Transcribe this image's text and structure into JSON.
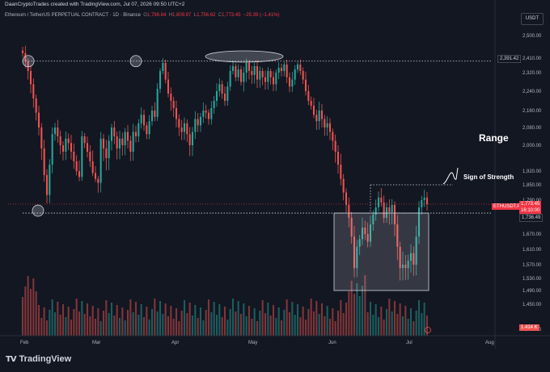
{
  "header": {
    "text": "DaanCryptoTrades created with TradingView.com, Jul 07, 2026 09:50 UTC+2"
  },
  "symbol_line": {
    "name": "Ethereum / TetherUS PERPETUAL CONTRACT · 1D · Binance",
    "open_label": "O",
    "open": "1,798.84",
    "high_label": "H",
    "high": "1,809.87",
    "low_label": "L",
    "low": "1,756.62",
    "close_label": "C",
    "close": "1,773.45",
    "change": "−25.39 (−1.41%)"
  },
  "currency_button": "USDT",
  "annotations": {
    "range": "Range",
    "sign_of_strength": "Sign of Strength"
  },
  "price_labels": {
    "top_level": "2,391.42",
    "symbol_tag": "ETHUSDT.P",
    "current": "1,773.45",
    "countdown": "16:10:00",
    "low_level": "1,736.49",
    "volume_tag": "1.414 K"
  },
  "footer": {
    "logo_mark": "TV",
    "logo_text": "TradingView"
  },
  "colors": {
    "background": "#131722",
    "up": "#26a69a",
    "down": "#ef5350",
    "current_price": "#f23645"
  },
  "chart_data": {
    "type": "candlestick",
    "y_ticks": [
      "2,500.00",
      "2,410.00",
      "2,320.00",
      "2,240.00",
      "2,160.00",
      "2,080.00",
      "2,000.00",
      "1,920.00",
      "1,850.00",
      "1,790.00",
      "1,730.00",
      "1,670.00",
      "1,610.00",
      "1,570.00",
      "1,530.00",
      "1,490.00",
      "1,450.00",
      "1,414.00"
    ],
    "x_ticks": [
      "Feb",
      "Mar",
      "Apr",
      "May",
      "Jun",
      "Jul",
      "Aug"
    ],
    "levels": [
      2391.42,
      1736.49
    ],
    "range_box": [
      1490,
      1736.49
    ],
    "sos_level": 1850,
    "closes": [
      2430,
      2390,
      2330,
      2270,
      2210,
      2150,
      2080,
      1990,
      1900,
      1810,
      1940,
      2050,
      2080,
      2040,
      2000,
      1980,
      2030,
      2010,
      1980,
      1950,
      1920,
      1890,
      2040,
      2010,
      1980,
      1950,
      1910,
      1880,
      1860,
      2030,
      1990,
      1960,
      2020,
      2080,
      2040,
      1990,
      2030,
      2000,
      2060,
      2020,
      1980,
      2060,
      2040,
      2100,
      2140,
      2090,
      2050,
      2110,
      2160,
      2130,
      2250,
      2330,
      2380,
      2290,
      2230,
      2200,
      2170,
      2120,
      2080,
      2060,
      2100,
      2050,
      2000,
      2060,
      2120,
      2090,
      2130,
      2160,
      2150,
      2120,
      2170,
      2200,
      2240,
      2270,
      2230,
      2200,
      2260,
      2330,
      2360,
      2300,
      2340,
      2280,
      2320,
      2380,
      2330,
      2310,
      2360,
      2290,
      2330,
      2300,
      2280,
      2330,
      2300,
      2270,
      2320,
      2350,
      2330,
      2370,
      2300,
      2260,
      2290,
      2340,
      2370,
      2330,
      2290,
      2240,
      2200,
      2180,
      2140,
      2110,
      2160,
      2120,
      2080,
      2100,
      2060,
      2020,
      1980,
      1940,
      1880,
      1820,
      1770,
      1720,
      1660,
      1560,
      1620,
      1650,
      1690,
      1670,
      1640,
      1700,
      1730,
      1760,
      1800,
      1780,
      1720,
      1760,
      1740,
      1770,
      1700,
      1620,
      1560,
      1570,
      1560,
      1580,
      1600,
      1570,
      1660,
      1760,
      1790,
      1800,
      1773.45
    ],
    "volume_max": 1.0
  }
}
